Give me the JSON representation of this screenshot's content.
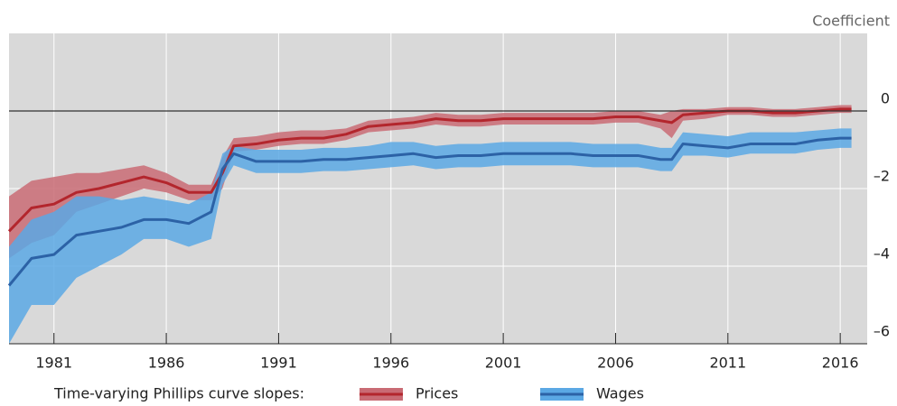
{
  "chart_data": {
    "type": "line-band",
    "y_axis_label": "Coefficient",
    "legend_title": "Time-varying Phillips curve slopes:",
    "x": [
      1979,
      1980,
      1981,
      1982,
      1983,
      1984,
      1985,
      1986,
      1987,
      1988,
      1988.5,
      1989,
      1990,
      1991,
      1992,
      1993,
      1994,
      1995,
      1996,
      1997,
      1998,
      1999,
      2000,
      2001,
      2002,
      2003,
      2004,
      2005,
      2006,
      2007,
      2008,
      2008.5,
      2009,
      2010,
      2011,
      2012,
      2013,
      2014,
      2015,
      2016,
      2016.5
    ],
    "series": [
      {
        "name": "Prices",
        "color": "#b3262d",
        "band_color": "#c96b74",
        "values": [
          -3.1,
          -2.5,
          -2.4,
          -2.1,
          -2.0,
          -1.85,
          -1.7,
          -1.85,
          -2.1,
          -2.1,
          -1.6,
          -0.9,
          -0.85,
          -0.75,
          -0.7,
          -0.7,
          -0.6,
          -0.4,
          -0.35,
          -0.3,
          -0.2,
          -0.25,
          -0.25,
          -0.2,
          -0.2,
          -0.2,
          -0.2,
          -0.2,
          -0.15,
          -0.15,
          -0.25,
          -0.3,
          -0.1,
          -0.05,
          0.0,
          0.0,
          -0.05,
          -0.05,
          0.0,
          0.05,
          0.05
        ],
        "lower": [
          -3.8,
          -3.4,
          -3.2,
          -2.6,
          -2.4,
          -2.2,
          -2.0,
          -2.1,
          -2.3,
          -2.3,
          -2.0,
          -1.05,
          -1.0,
          -0.9,
          -0.85,
          -0.85,
          -0.75,
          -0.55,
          -0.5,
          -0.45,
          -0.35,
          -0.4,
          -0.4,
          -0.35,
          -0.35,
          -0.35,
          -0.35,
          -0.35,
          -0.3,
          -0.3,
          -0.45,
          -0.7,
          -0.25,
          -0.2,
          -0.1,
          -0.1,
          -0.15,
          -0.15,
          -0.1,
          -0.05,
          -0.05
        ],
        "upper": [
          -2.2,
          -1.8,
          -1.7,
          -1.6,
          -1.6,
          -1.5,
          -1.4,
          -1.6,
          -1.9,
          -1.9,
          -1.2,
          -0.7,
          -0.65,
          -0.55,
          -0.5,
          -0.5,
          -0.45,
          -0.25,
          -0.2,
          -0.15,
          -0.05,
          -0.1,
          -0.1,
          -0.05,
          -0.05,
          -0.05,
          -0.05,
          -0.05,
          0.0,
          0.0,
          -0.1,
          0.0,
          0.05,
          0.05,
          0.1,
          0.1,
          0.05,
          0.05,
          0.1,
          0.15,
          0.15
        ]
      },
      {
        "name": "Wages",
        "color": "#2c62a6",
        "band_color": "#5ba8e4",
        "values": [
          -4.5,
          -3.8,
          -3.7,
          -3.2,
          -3.1,
          -3.0,
          -2.8,
          -2.8,
          -2.9,
          -2.6,
          -1.5,
          -1.1,
          -1.3,
          -1.3,
          -1.3,
          -1.25,
          -1.25,
          -1.2,
          -1.15,
          -1.1,
          -1.2,
          -1.15,
          -1.15,
          -1.1,
          -1.1,
          -1.1,
          -1.1,
          -1.15,
          -1.15,
          -1.15,
          -1.25,
          -1.25,
          -0.85,
          -0.9,
          -0.95,
          -0.85,
          -0.85,
          -0.85,
          -0.75,
          -0.7,
          -0.7
        ],
        "lower": [
          -6.0,
          -5.0,
          -5.0,
          -4.3,
          -4.0,
          -3.7,
          -3.3,
          -3.3,
          -3.5,
          -3.3,
          -1.9,
          -1.4,
          -1.6,
          -1.6,
          -1.6,
          -1.55,
          -1.55,
          -1.5,
          -1.45,
          -1.4,
          -1.5,
          -1.45,
          -1.45,
          -1.4,
          -1.4,
          -1.4,
          -1.4,
          -1.45,
          -1.45,
          -1.45,
          -1.55,
          -1.55,
          -1.15,
          -1.15,
          -1.2,
          -1.1,
          -1.1,
          -1.1,
          -1.0,
          -0.95,
          -0.95
        ],
        "upper": [
          -3.5,
          -2.8,
          -2.6,
          -2.2,
          -2.2,
          -2.3,
          -2.2,
          -2.3,
          -2.4,
          -2.1,
          -1.1,
          -0.9,
          -1.0,
          -1.0,
          -1.0,
          -0.95,
          -0.95,
          -0.9,
          -0.8,
          -0.8,
          -0.9,
          -0.85,
          -0.85,
          -0.8,
          -0.8,
          -0.8,
          -0.8,
          -0.85,
          -0.85,
          -0.85,
          -0.95,
          -0.95,
          -0.55,
          -0.6,
          -0.65,
          -0.55,
          -0.55,
          -0.55,
          -0.5,
          -0.45,
          -0.45
        ]
      }
    ],
    "xlim": [
      1979,
      2017.2
    ],
    "xticks": [
      1981,
      1986,
      1991,
      1996,
      2001,
      2006,
      2011,
      2016
    ],
    "ylim": [
      -6,
      2
    ],
    "yticks": [
      {
        "value": -6,
        "label": "–6"
      },
      {
        "value": -4,
        "label": "–4"
      },
      {
        "value": -2,
        "label": "–2"
      },
      0
    ],
    "grid": true,
    "background": "#d9d9d9"
  }
}
